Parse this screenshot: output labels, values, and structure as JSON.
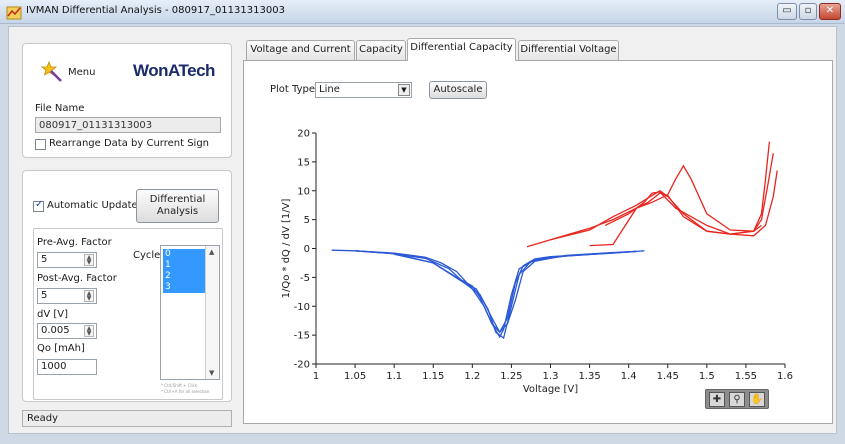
{
  "window": {
    "title": "IVMAN Differential Analysis - 080917_01131313003",
    "min_btn": "▭",
    "max_btn": "▫",
    "close_btn": "✕"
  },
  "sidebar": {
    "menu_label": "Menu",
    "logo_text": "WonATech",
    "file_name_label": "File Name",
    "file_name_value": "080917_01131313003",
    "rearrange_label": "Rearrange Data by Current Sign",
    "rearrange_checked": false,
    "auto_update_label": "Automatic Update",
    "auto_update_checked": true,
    "diff_button": "Differential\nAnalysis",
    "pre_avg_label": "Pre-Avg. Factor",
    "pre_avg_value": "5",
    "post_avg_label": "Post-Avg. Factor",
    "post_avg_value": "5",
    "dv_label": "dV [V]",
    "dv_value": "0.005",
    "qo_label": "Qo [mAh]",
    "qo_value": "1000",
    "cycle_label": "Cycle",
    "cycles": [
      "0",
      "1",
      "2",
      "3"
    ],
    "hint_1": "* Ctrl/Shift + Click",
    "hint_2": "* Ctrl+A for all selection"
  },
  "status": {
    "text": "Ready"
  },
  "tabs": [
    {
      "label": "Voltage and Current"
    },
    {
      "label": "Capacity"
    },
    {
      "label": "Differential Capacity"
    },
    {
      "label": "Differential Voltage"
    }
  ],
  "plot_controls": {
    "plot_type_label": "Plot Type",
    "plot_type_value": "Line",
    "autoscale_label": "Autoscale"
  },
  "colors": {
    "discharge": "#2a58d6",
    "charge": "#e8251e",
    "selection": "#3399ff"
  },
  "chart_data": {
    "type": "line",
    "xlabel": "Voltage [V]",
    "ylabel": "1/Qo * dQ / dV [1/V]",
    "xlim": [
      1,
      1.6
    ],
    "ylim": [
      -20,
      20
    ],
    "xticks": [
      1,
      1.05,
      1.1,
      1.15,
      1.2,
      1.25,
      1.3,
      1.35,
      1.4,
      1.45,
      1.5,
      1.55,
      1.6
    ],
    "yticks": [
      -20,
      -15,
      -10,
      -5,
      0,
      5,
      10,
      15,
      20
    ],
    "series": [
      {
        "color": "#2a58d6",
        "x": [
          1.02,
          1.05,
          1.1,
          1.14,
          1.16,
          1.18,
          1.2,
          1.215,
          1.225,
          1.235,
          1.245,
          1.255,
          1.265,
          1.28,
          1.3,
          1.35,
          1.4,
          1.41
        ],
        "y": [
          -0.3,
          -0.4,
          -0.8,
          -1.5,
          -2.5,
          -4,
          -7,
          -10,
          -13,
          -14.5,
          -12,
          -6,
          -3,
          -1.8,
          -1.4,
          -1,
          -0.6,
          -0.5
        ]
      },
      {
        "color": "#2a58d6",
        "x": [
          1.05,
          1.1,
          1.14,
          1.17,
          1.19,
          1.205,
          1.22,
          1.23,
          1.24,
          1.25,
          1.26,
          1.275,
          1.3,
          1.35,
          1.41
        ],
        "y": [
          -0.4,
          -0.9,
          -1.7,
          -3.5,
          -6,
          -7,
          -10.5,
          -14.5,
          -15.5,
          -10,
          -4.5,
          -2.2,
          -1.5,
          -1,
          -0.5
        ]
      },
      {
        "color": "#2a58d6",
        "x": [
          1.05,
          1.1,
          1.15,
          1.18,
          1.2,
          1.21,
          1.225,
          1.235,
          1.24,
          1.25,
          1.26,
          1.28,
          1.32,
          1.38,
          1.42
        ],
        "y": [
          -0.4,
          -0.9,
          -2.5,
          -5,
          -6.5,
          -8.5,
          -13,
          -15.3,
          -14,
          -8,
          -3.5,
          -2,
          -1.3,
          -0.8,
          -0.4
        ]
      },
      {
        "color": "#2a58d6",
        "x": [
          1.1,
          1.15,
          1.19,
          1.21,
          1.225,
          1.235,
          1.245,
          1.255,
          1.265,
          1.28,
          1.32,
          1.38,
          1.41
        ],
        "y": [
          -1,
          -2.5,
          -6,
          -8,
          -12,
          -14.5,
          -13,
          -9,
          -4,
          -2.2,
          -1.2,
          -0.7,
          -0.5
        ]
      },
      {
        "color": "#e8251e",
        "x": [
          1.27,
          1.3,
          1.35,
          1.38,
          1.41,
          1.43,
          1.45,
          1.46,
          1.47,
          1.48,
          1.5,
          1.53,
          1.56,
          1.57
        ],
        "y": [
          0.3,
          1.5,
          3.5,
          5,
          7,
          8,
          9.3,
          12,
          14.3,
          12,
          6,
          3.2,
          3,
          4
        ]
      },
      {
        "color": "#e8251e",
        "x": [
          1.3,
          1.35,
          1.38,
          1.41,
          1.43,
          1.44,
          1.45,
          1.47,
          1.5,
          1.53,
          1.56,
          1.57,
          1.575,
          1.58
        ],
        "y": [
          1.5,
          3.2,
          5.5,
          7.5,
          9.2,
          10,
          9,
          6,
          3,
          2.5,
          3,
          6,
          12,
          18.5
        ]
      },
      {
        "color": "#e8251e",
        "x": [
          1.35,
          1.38,
          1.41,
          1.425,
          1.44,
          1.45,
          1.47,
          1.5,
          1.53,
          1.56,
          1.57,
          1.578,
          1.585
        ],
        "y": [
          0.5,
          0.7,
          7,
          8,
          9.6,
          9.2,
          5.5,
          3,
          2.5,
          3,
          5,
          11,
          16.5
        ]
      },
      {
        "color": "#e8251e",
        "x": [
          1.37,
          1.4,
          1.42,
          1.43,
          1.44,
          1.46,
          1.5,
          1.53,
          1.56,
          1.575,
          1.585,
          1.59
        ],
        "y": [
          4,
          6,
          8,
          9.6,
          9.8,
          7,
          4,
          2.5,
          2.2,
          4,
          9,
          13.5
        ]
      }
    ]
  }
}
